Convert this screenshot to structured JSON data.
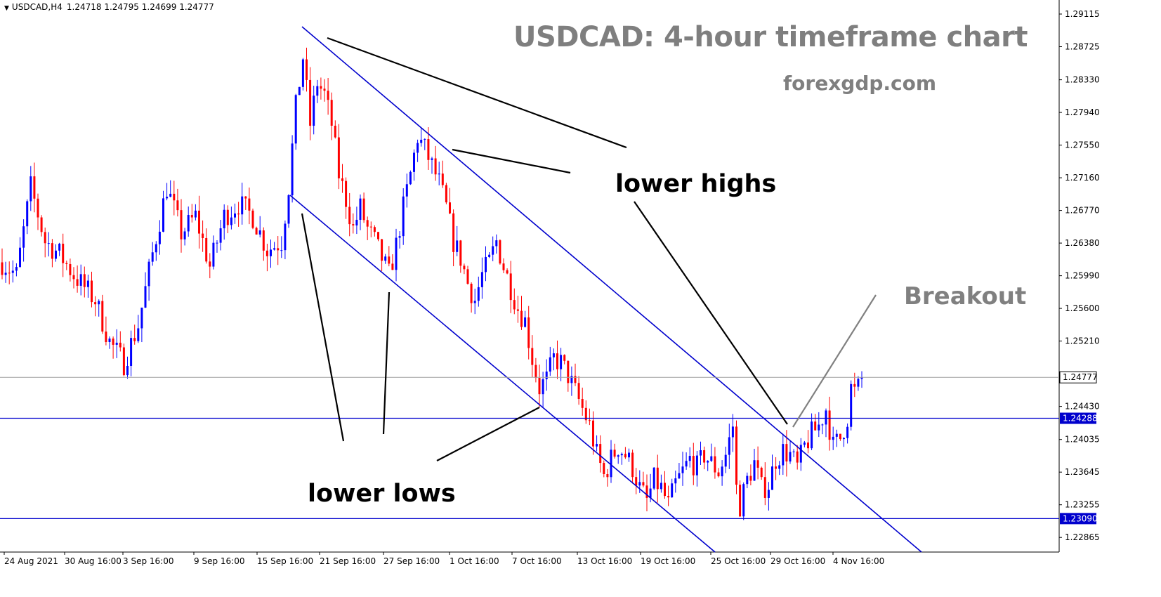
{
  "header": {
    "symbol": "USDCAD,H4",
    "values": "1.24718 1.24795 1.24699 1.24777"
  },
  "title": "USDCAD: 4-hour timeframe chart",
  "website": "forexgdp.com",
  "annotations": {
    "lower_highs": "lower highs",
    "lower_lows": "lower lows",
    "breakout": "Breakout"
  },
  "colors": {
    "bull": "#0000ff",
    "bear": "#ff0000",
    "channel": "#0000cd",
    "level_line": "#0000cd",
    "grid_text": "#000000",
    "annotation_gray": "#7f7f7f"
  },
  "chart_data": {
    "type": "candlestick",
    "y_axis_ticks": [
      "1.29115",
      "1.28725",
      "1.28330",
      "1.27940",
      "1.27550",
      "1.27160",
      "1.26770",
      "1.26380",
      "1.25990",
      "1.25600",
      "1.25210",
      "1.24430",
      "1.24035",
      "1.23645",
      "1.23255",
      "1.22865"
    ],
    "x_axis_ticks": [
      "24 Aug 2021",
      "30 Aug 16:00",
      "3 Sep 16:00",
      "9 Sep 16:00",
      "15 Sep 16:00",
      "21 Sep 16:00",
      "27 Sep 16:00",
      "1 Oct 16:00",
      "7 Oct 16:00",
      "13 Oct 16:00",
      "19 Oct 16:00",
      "25 Oct 16:00",
      "29 Oct 16:00",
      "4 Nov 16:00"
    ],
    "ylim": [
      1.2265,
      1.2935
    ],
    "current_price": "1.24777",
    "support_levels": [
      "1.24288",
      "1.23090"
    ],
    "close_path": [
      [
        0,
        1.2615
      ],
      [
        4,
        1.26
      ],
      [
        8,
        1.2705
      ],
      [
        12,
        1.264
      ],
      [
        16,
        1.2625
      ],
      [
        20,
        1.26
      ],
      [
        26,
        1.257
      ],
      [
        30,
        1.252
      ],
      [
        34,
        1.2495
      ],
      [
        38,
        1.254
      ],
      [
        42,
        1.2625
      ],
      [
        46,
        1.2705
      ],
      [
        50,
        1.265
      ],
      [
        54,
        1.267
      ],
      [
        58,
        1.261
      ],
      [
        62,
        1.267
      ],
      [
        66,
        1.2685
      ],
      [
        70,
        1.267
      ],
      [
        74,
        1.263
      ],
      [
        78,
        1.264
      ],
      [
        80,
        1.2705
      ],
      [
        82,
        1.28
      ],
      [
        84,
        1.286
      ],
      [
        86,
        1.278
      ],
      [
        88,
        1.283
      ],
      [
        90,
        1.2815
      ],
      [
        92,
        1.278
      ],
      [
        94,
        1.272
      ],
      [
        96,
        1.269
      ],
      [
        98,
        1.2655
      ],
      [
        100,
        1.268
      ],
      [
        102,
        1.2655
      ],
      [
        104,
        1.264
      ],
      [
        106,
        1.262
      ],
      [
        108,
        1.26
      ],
      [
        110,
        1.2635
      ],
      [
        112,
        1.268
      ],
      [
        114,
        1.272
      ],
      [
        116,
        1.2765
      ],
      [
        118,
        1.275
      ],
      [
        120,
        1.273
      ],
      [
        122,
        1.271
      ],
      [
        124,
        1.268
      ],
      [
        126,
        1.264
      ],
      [
        128,
        1.262
      ],
      [
        130,
        1.259
      ],
      [
        132,
        1.257
      ],
      [
        134,
        1.26
      ],
      [
        136,
        1.2615
      ],
      [
        138,
        1.264
      ],
      [
        140,
        1.261
      ],
      [
        142,
        1.2585
      ],
      [
        144,
        1.256
      ],
      [
        146,
        1.2545
      ],
      [
        148,
        1.25
      ],
      [
        150,
        1.2465
      ],
      [
        152,
        1.2475
      ],
      [
        154,
        1.25
      ],
      [
        156,
        1.2495
      ],
      [
        158,
        1.248
      ],
      [
        160,
        1.246
      ],
      [
        162,
        1.244
      ],
      [
        164,
        1.242
      ],
      [
        166,
        1.2385
      ],
      [
        168,
        1.236
      ],
      [
        170,
        1.238
      ],
      [
        172,
        1.2395
      ],
      [
        174,
        1.2385
      ],
      [
        176,
        1.237
      ],
      [
        178,
        1.2345
      ],
      [
        180,
        1.233
      ],
      [
        182,
        1.2355
      ],
      [
        184,
        1.2345
      ],
      [
        186,
        1.2325
      ],
      [
        188,
        1.235
      ],
      [
        190,
        1.2365
      ],
      [
        192,
        1.238
      ],
      [
        194,
        1.237
      ],
      [
        196,
        1.2385
      ],
      [
        198,
        1.2375
      ],
      [
        200,
        1.2365
      ],
      [
        202,
        1.2385
      ],
      [
        204,
        1.242
      ],
      [
        205,
        1.2345
      ],
      [
        206,
        1.2325
      ],
      [
        208,
        1.2355
      ],
      [
        210,
        1.2375
      ],
      [
        212,
        1.2345
      ],
      [
        214,
        1.235
      ],
      [
        216,
        1.238
      ],
      [
        218,
        1.239
      ],
      [
        220,
        1.2385
      ],
      [
        222,
        1.237
      ],
      [
        224,
        1.2395
      ],
      [
        226,
        1.241
      ],
      [
        228,
        1.242
      ],
      [
        230,
        1.244
      ],
      [
        232,
        1.2395
      ],
      [
        234,
        1.2405
      ],
      [
        236,
        1.243
      ],
      [
        237,
        1.2465
      ],
      [
        238,
        1.246
      ],
      [
        239,
        1.2465
      ],
      [
        240,
        1.24777
      ]
    ]
  }
}
